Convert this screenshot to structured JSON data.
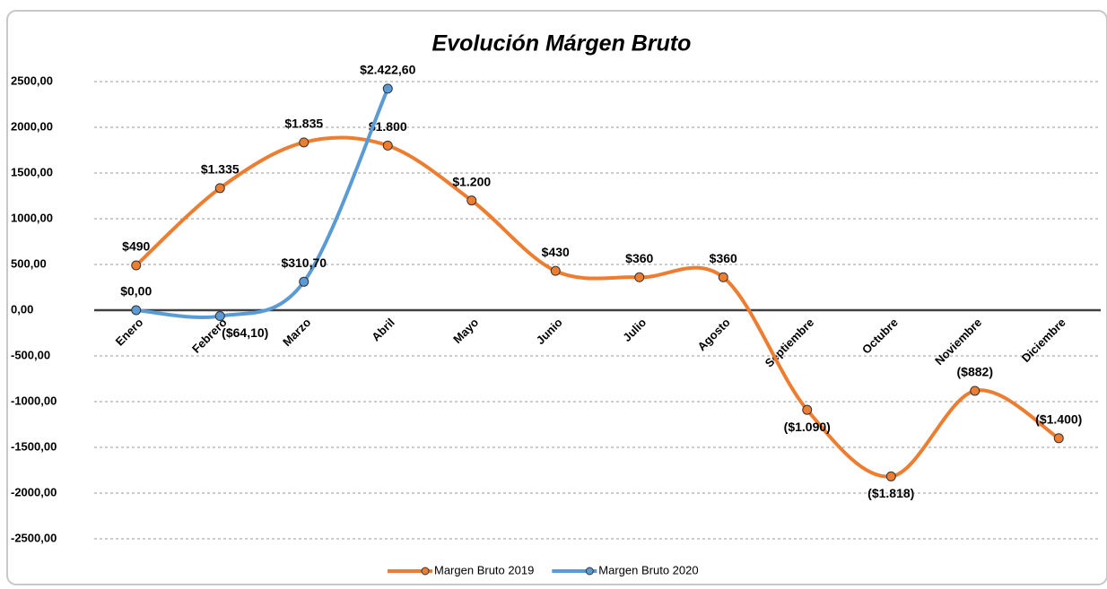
{
  "chart_data": {
    "type": "line",
    "title": "Evolución Márgen Bruto",
    "categories": [
      "Enero",
      "Febrero",
      "Marzo",
      "Abril",
      "Mayo",
      "Junio",
      "Julio",
      "Agosto",
      "Septiembre",
      "Octubre",
      "Noviembre",
      "Diciembre"
    ],
    "series": [
      {
        "name": "Margen Bruto 2019",
        "color": "#ed7d31",
        "values": [
          490,
          1335,
          1835,
          1800,
          1200,
          430,
          360,
          360,
          -1090,
          -1818,
          -882,
          -1400
        ],
        "value_labels": [
          "$490",
          "$1.335",
          "$1.835",
          "$1.800",
          "$1.200",
          "$430",
          "$360",
          "$360",
          "($1.090)",
          "($1.818)",
          "($882)",
          "($1.400)"
        ]
      },
      {
        "name": "Margen Bruto 2020",
        "color": "#5b9bd5",
        "values": [
          0,
          -64.1,
          310.7,
          2422.6,
          null,
          null,
          null,
          null,
          null,
          null,
          null,
          null
        ],
        "value_labels": [
          "$0,00",
          "($64,10)",
          "$310,70",
          "$2.422,60",
          null,
          null,
          null,
          null,
          null,
          null,
          null,
          null
        ]
      }
    ],
    "ylim": [
      -2500,
      2500
    ],
    "yticks": [
      {
        "value": -2500,
        "label": "-2500,00"
      },
      {
        "value": -2000,
        "label": "-2000,00"
      },
      {
        "value": -1500,
        "label": "-1500,00"
      },
      {
        "value": -1000,
        "label": "-1000,00"
      },
      {
        "value": -500,
        "label": "-500,00"
      },
      {
        "value": 0,
        "label": "0,00"
      },
      {
        "value": 500,
        "label": "500,00"
      },
      {
        "value": 1000,
        "label": "1000,00"
      },
      {
        "value": 1500,
        "label": "1500,00"
      },
      {
        "value": 2000,
        "label": "2000,00"
      },
      {
        "value": 2500,
        "label": "2500,00"
      }
    ],
    "grid": true,
    "smooth": true,
    "negative_label_color": "#ff0000",
    "legend": "bottom"
  }
}
